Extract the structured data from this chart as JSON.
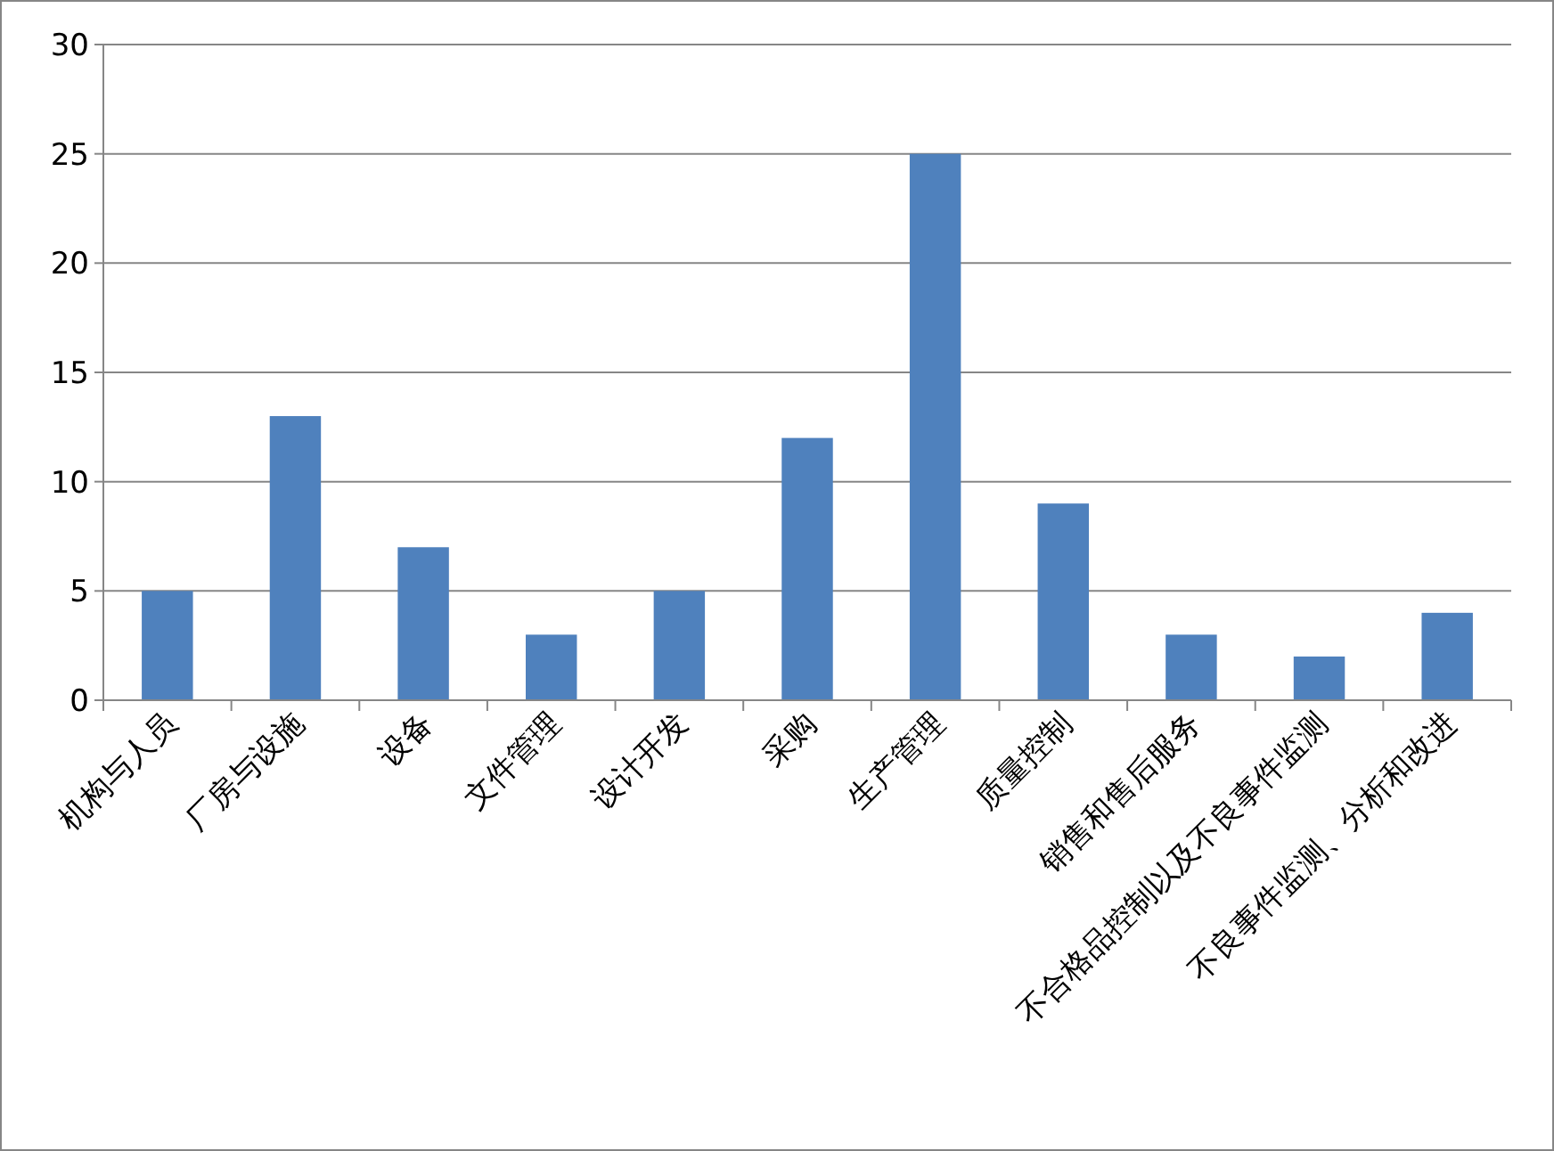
{
  "chart_data": {
    "type": "bar",
    "categories": [
      "机构与人员",
      "厂房与设施",
      "设备",
      "文件管理",
      "设计开发",
      "采购",
      "生产管理",
      "质量控制",
      "销售和售后服务",
      "不合格品控制以及不良事件监测",
      "不良事件监测、分析和改进"
    ],
    "values": [
      5,
      13,
      7,
      3,
      5,
      12,
      25,
      9,
      3,
      2,
      4
    ],
    "color": "#4f81bd",
    "ylim": [
      0,
      30
    ],
    "yticks": [
      0,
      5,
      10,
      15,
      20,
      25,
      30
    ],
    "grid": "y"
  }
}
